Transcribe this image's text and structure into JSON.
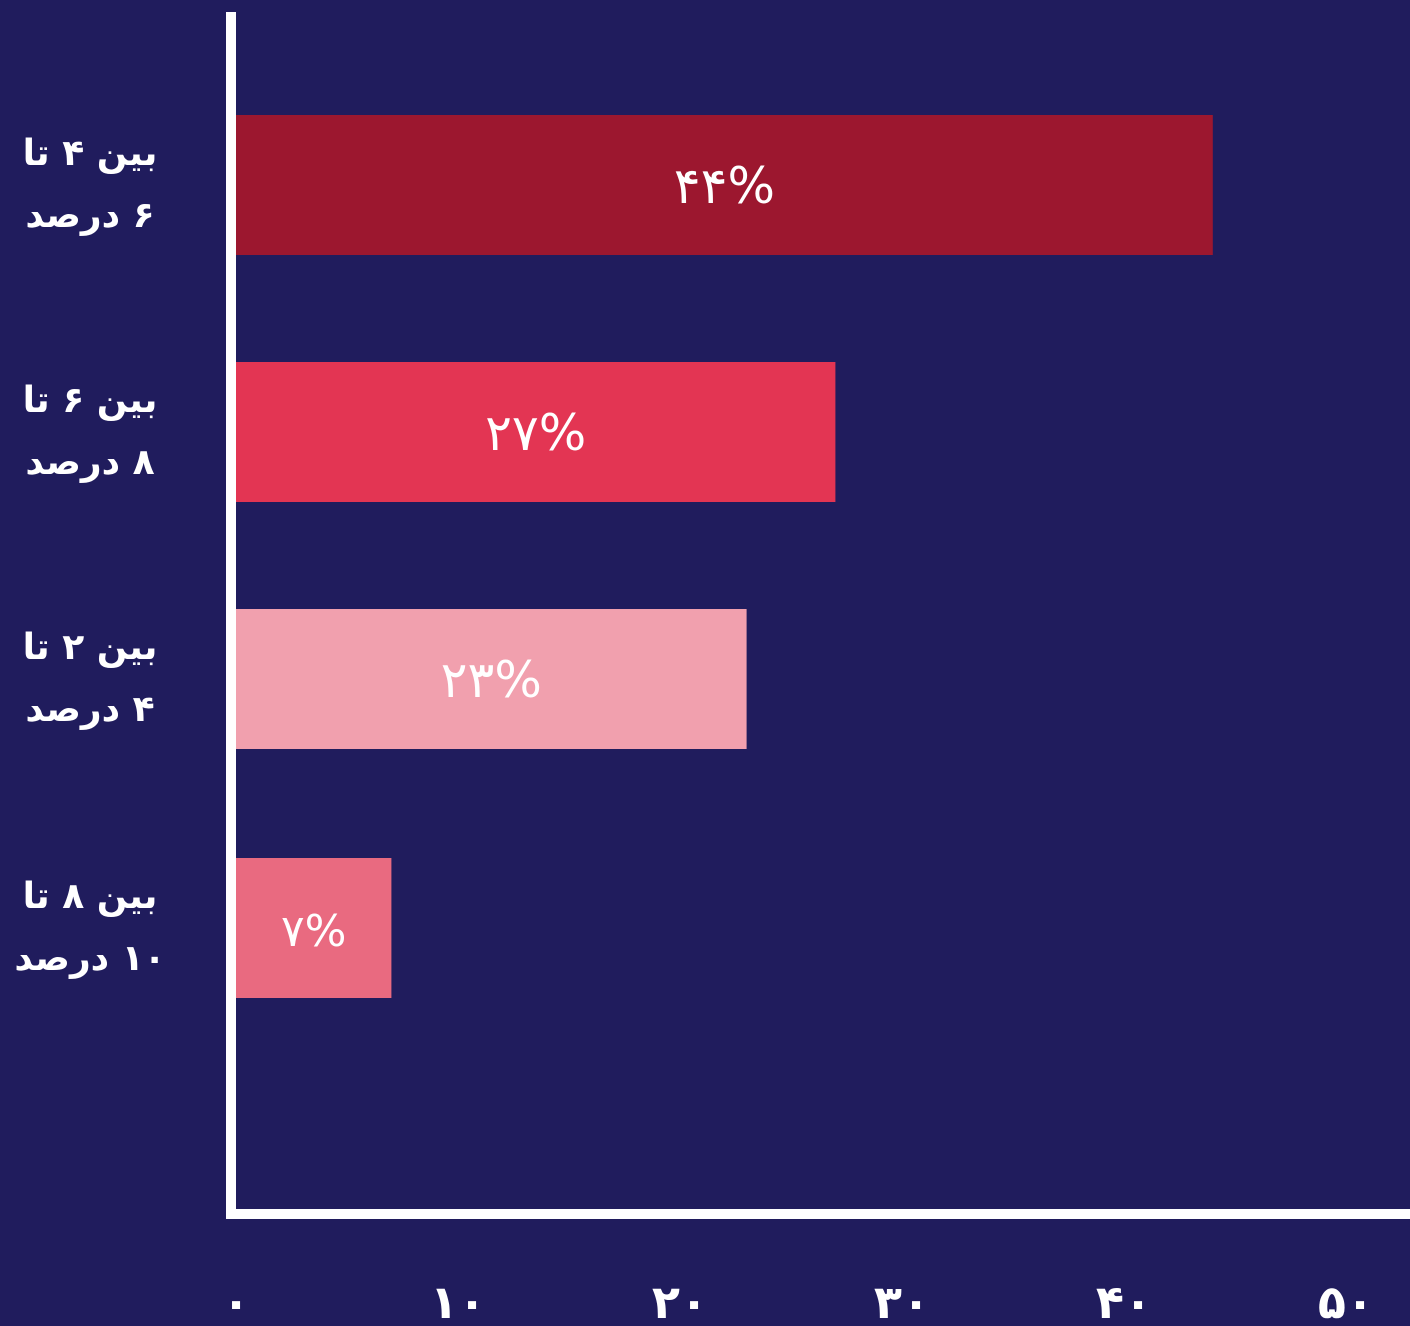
{
  "chart_data": {
    "type": "bar",
    "orientation": "horizontal",
    "title": "",
    "categories": [
      {
        "line1": "بین ۴ تا",
        "line2": "۶ درصد"
      },
      {
        "line1": "بین ۶ تا",
        "line2": "۸ درصد"
      },
      {
        "line1": "بین ۲ تا",
        "line2": "۴ درصد"
      },
      {
        "line1": "بین ۸ تا",
        "line2": "۱۰ درصد"
      }
    ],
    "values": [
      44,
      27,
      23,
      7
    ],
    "value_labels": [
      "۴۴%",
      "۲۷%",
      "۲۳%",
      "۷%"
    ],
    "bar_colors": [
      "#9c172f",
      "#e33553",
      "#f1a0ae",
      "#e96a80"
    ],
    "xlim": [
      0,
      50
    ],
    "x_ticks": [
      0,
      10,
      20,
      30,
      40,
      50
    ],
    "x_tick_labels": [
      "۰",
      "۱۰",
      "۲۰",
      "۳۰",
      "۴۰",
      "۵۰"
    ],
    "grid": false,
    "xlabel": "",
    "ylabel": ""
  },
  "colors": {
    "background": "#201c5d",
    "axis": "#ffffff",
    "text": "#ffffff"
  }
}
